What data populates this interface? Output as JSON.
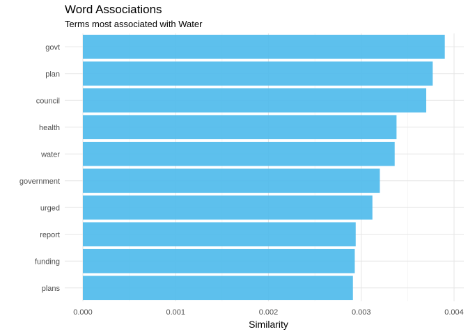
{
  "chart_data": {
    "type": "bar",
    "orientation": "horizontal",
    "title": "Word Associations",
    "subtitle": "Terms most associated with Water",
    "xlabel": "Similarity",
    "ylabel": "",
    "categories": [
      "govt",
      "plan",
      "council",
      "health",
      "water",
      "government",
      "urged",
      "report",
      "funding",
      "plans"
    ],
    "values": [
      0.0039,
      0.00377,
      0.0037,
      0.00338,
      0.00336,
      0.0032,
      0.00312,
      0.00294,
      0.00293,
      0.00291
    ],
    "xlim": [
      0,
      0.004
    ],
    "xticks": [
      "0.000",
      "0.001",
      "0.002",
      "0.003",
      "0.004"
    ],
    "xtick_values": [
      0,
      0.001,
      0.002,
      0.003,
      0.004
    ],
    "grid": true,
    "legend": "none",
    "bar_color": "#4FBBEB"
  }
}
